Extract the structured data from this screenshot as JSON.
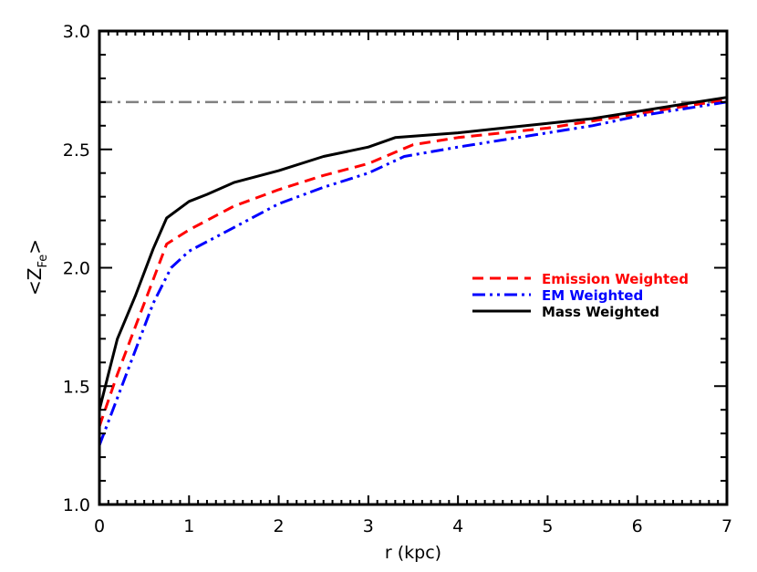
{
  "chart_data": {
    "type": "line",
    "xlabel": "r (kpc)",
    "ylabel_main": "<Z",
    "ylabel_sub": "Fe",
    "ylabel_end": ">",
    "xlim": [
      0,
      7
    ],
    "ylim": [
      1.0,
      3.0
    ],
    "xticks": [
      "0",
      "1",
      "2",
      "3",
      "4",
      "5",
      "6",
      "7"
    ],
    "yticks": [
      "1.0",
      "1.5",
      "2.0",
      "2.5",
      "3.0"
    ],
    "grid": false,
    "legend_position": "center-right",
    "reference_line": {
      "y": 2.7,
      "color": "#808080",
      "style": "dash-dot"
    },
    "series": [
      {
        "name": "Emission Weighted",
        "color": "#ff0000",
        "style": "dashed",
        "x": [
          0,
          0.2,
          0.4,
          0.6,
          0.75,
          1.0,
          1.5,
          2.0,
          2.5,
          3.0,
          3.5,
          4.0,
          4.5,
          5.0,
          5.5,
          6.0,
          6.5,
          7.0
        ],
        "y": [
          1.33,
          1.55,
          1.75,
          1.95,
          2.1,
          2.16,
          2.26,
          2.33,
          2.39,
          2.44,
          2.52,
          2.55,
          2.57,
          2.59,
          2.62,
          2.65,
          2.68,
          2.71
        ]
      },
      {
        "name": "EM Weighted",
        "color": "#0000ff",
        "style": "dash-dot-dot",
        "x": [
          0,
          0.2,
          0.4,
          0.6,
          0.8,
          1.0,
          1.5,
          2.0,
          2.5,
          3.0,
          3.4,
          4.0,
          4.5,
          5.0,
          5.5,
          6.0,
          6.5,
          7.0
        ],
        "y": [
          1.25,
          1.45,
          1.65,
          1.85,
          2.0,
          2.07,
          2.17,
          2.27,
          2.34,
          2.4,
          2.47,
          2.51,
          2.54,
          2.57,
          2.6,
          2.64,
          2.67,
          2.7
        ]
      },
      {
        "name": "Mass Weighted",
        "color": "#000000",
        "style": "solid",
        "x": [
          0,
          0.1,
          0.2,
          0.4,
          0.6,
          0.75,
          1.0,
          1.2,
          1.5,
          2.0,
          2.5,
          3.0,
          3.3,
          4.0,
          4.5,
          5.0,
          5.5,
          6.0,
          6.5,
          7.0
        ],
        "y": [
          1.4,
          1.55,
          1.7,
          1.88,
          2.08,
          2.21,
          2.28,
          2.31,
          2.36,
          2.41,
          2.47,
          2.51,
          2.55,
          2.57,
          2.59,
          2.61,
          2.63,
          2.66,
          2.69,
          2.72
        ]
      }
    ]
  }
}
